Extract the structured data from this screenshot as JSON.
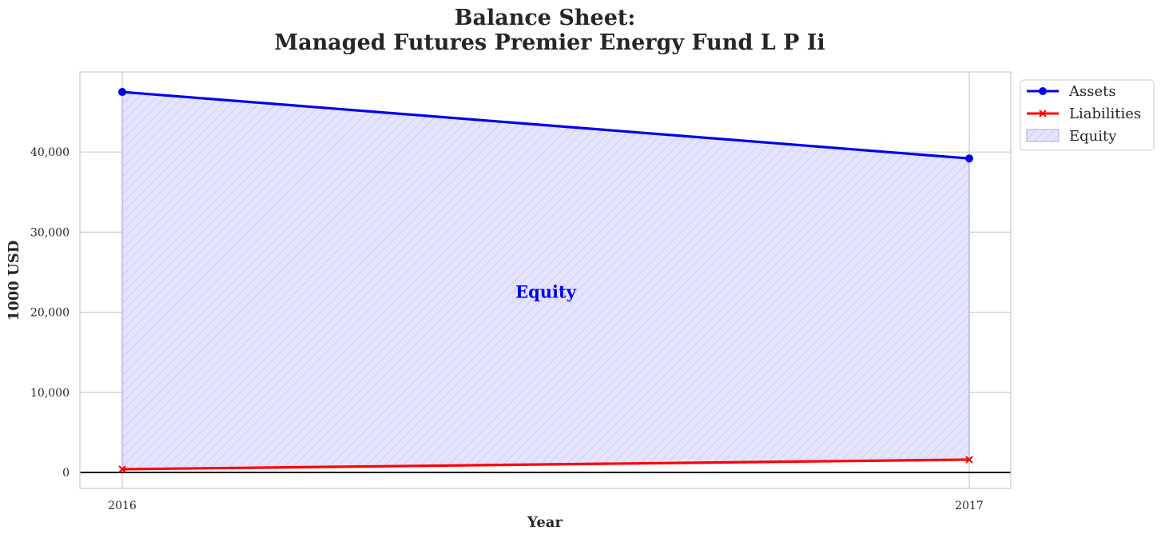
{
  "chart_data": {
    "type": "area",
    "title_line1": "Balance Sheet:",
    "title_line2": "Managed Futures Premier Energy Fund L P Ii",
    "xlabel": "Year",
    "ylabel": "1000 USD",
    "categories": [
      "2016",
      "2017"
    ],
    "x": [
      2016,
      2017
    ],
    "ylim": [
      -2000,
      50000
    ],
    "yticks": [
      0,
      10000,
      20000,
      30000,
      40000
    ],
    "ytick_labels": [
      "0",
      "10,000",
      "20,000",
      "30,000",
      "40,000"
    ],
    "grid": true,
    "legend_placement": "outside-top-right",
    "series": [
      {
        "name": "Assets",
        "values": [
          47500,
          39200
        ],
        "color": "#0000ee",
        "marker": "circle"
      },
      {
        "name": "Liabilities",
        "values": [
          400,
          1600
        ],
        "color": "#ff0000",
        "marker": "x"
      }
    ],
    "fill": {
      "name": "Equity",
      "between": [
        "Liabilities",
        "Assets"
      ],
      "color": "#0000ff",
      "hatch": "diagonal"
    },
    "annotation": {
      "text": "Equity",
      "x": 2016.5,
      "y": 22500,
      "color": "#0000ee"
    }
  }
}
